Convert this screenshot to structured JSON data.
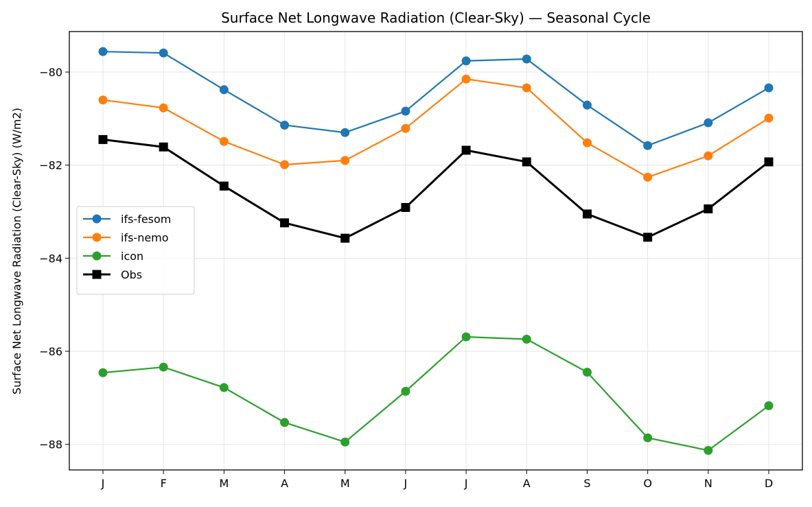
{
  "chart_data": {
    "type": "line",
    "title": "Surface Net Longwave Radiation (Clear-Sky) — Seasonal Cycle",
    "xlabel": "",
    "ylabel": "Surface Net Longwave Radiation (Clear-Sky) (W/m2)",
    "categories": [
      "J",
      "F",
      "M",
      "A",
      "M",
      "J",
      "J",
      "A",
      "S",
      "O",
      "N",
      "D"
    ],
    "ylim": [
      -88.55,
      -79.13
    ],
    "yticks": [
      -88,
      -86,
      -84,
      -82,
      -80
    ],
    "ytick_labels": [
      "−88",
      "−86",
      "−84",
      "−82",
      "−80"
    ],
    "grid": true,
    "legend_placement": "center-left",
    "series": [
      {
        "name": "ifs-fesom",
        "color": "#1f77b4",
        "marker": "circle",
        "values": [
          -79.56,
          -79.59,
          -80.38,
          -81.14,
          -81.3,
          -80.84,
          -79.76,
          -79.72,
          -80.71,
          -81.58,
          -81.09,
          -80.34
        ]
      },
      {
        "name": "ifs-nemo",
        "color": "#ff7f0e",
        "marker": "circle",
        "values": [
          -80.6,
          -80.77,
          -81.49,
          -81.99,
          -81.9,
          -81.21,
          -80.15,
          -80.34,
          -81.52,
          -82.26,
          -81.8,
          -80.99
        ]
      },
      {
        "name": "icon",
        "color": "#2ca02c",
        "marker": "circle",
        "values": [
          -86.46,
          -86.34,
          -86.78,
          -87.53,
          -87.95,
          -86.86,
          -85.69,
          -85.74,
          -86.45,
          -87.86,
          -88.13,
          -87.17
        ]
      },
      {
        "name": "Obs",
        "color": "#000000",
        "marker": "square",
        "values": [
          -81.45,
          -81.61,
          -82.45,
          -83.24,
          -83.57,
          -82.91,
          -81.68,
          -81.93,
          -83.05,
          -83.55,
          -82.94,
          -81.93
        ]
      }
    ]
  }
}
